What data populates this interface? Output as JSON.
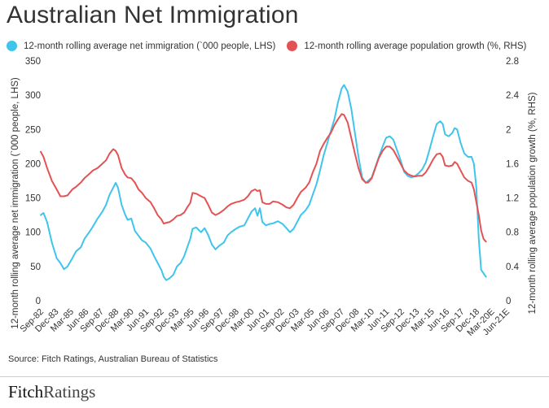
{
  "title": "Australian Net Immigration",
  "source": "Source: Fitch Ratings, Australian Bureau of Statistics",
  "brand": {
    "part1": "Fitch",
    "part2": "Ratings"
  },
  "colors": {
    "immigration": "#3fc5ec",
    "population": "#e45353",
    "axis_text": "#333333"
  },
  "chart_data": {
    "type": "line",
    "title": "Australian Net Immigration",
    "ylabel_left": "12-month rolling average net immigration (`000 people, LHS)",
    "ylabel_right": "12-month rolling average population growth (%, RHS)",
    "ylim_left": [
      0,
      350
    ],
    "ylim_right": [
      0,
      2.8
    ],
    "yticks_left": [
      "0",
      "50",
      "100",
      "150",
      "200",
      "250",
      "300",
      "350"
    ],
    "yticks_right": [
      "0",
      "0.4",
      "0.8",
      "1.2",
      "1.6",
      "2",
      "2.4",
      "2.8"
    ],
    "xlim": [
      1982.67,
      2021.42
    ],
    "xtick_labels": [
      "Sep-82",
      "Dec-83",
      "Mar-85",
      "Jun-86",
      "Sep-87",
      "Dec-88",
      "Mar-90",
      "Jun-91",
      "Sep-92",
      "Dec-93",
      "Mar-95",
      "Jun-96",
      "Sep-97",
      "Dec-98",
      "Mar-00",
      "Jun-01",
      "Sep-02",
      "Dec-03",
      "Mar-05",
      "Jun-06",
      "Sep-07",
      "Dec-08",
      "Mar-10",
      "Jun-11",
      "Sep-12",
      "Dec-13",
      "Mar-15",
      "Jun-16",
      "Sep-17",
      "Dec-18",
      "Mar-20E",
      "Jun-21E"
    ],
    "grid": false,
    "legend_position": "top",
    "series": [
      {
        "name": "12-month rolling average net immigration (`000 people, LHS)",
        "axis": "left",
        "points": [
          [
            1982.67,
            125
          ],
          [
            1982.9,
            128
          ],
          [
            1983.2,
            115
          ],
          [
            1983.6,
            85
          ],
          [
            1984.0,
            62
          ],
          [
            1984.3,
            55
          ],
          [
            1984.6,
            46
          ],
          [
            1984.9,
            50
          ],
          [
            1985.3,
            62
          ],
          [
            1985.6,
            72
          ],
          [
            1986.0,
            78
          ],
          [
            1986.3,
            90
          ],
          [
            1986.7,
            100
          ],
          [
            1987.0,
            108
          ],
          [
            1987.4,
            120
          ],
          [
            1987.8,
            130
          ],
          [
            1988.1,
            140
          ],
          [
            1988.4,
            155
          ],
          [
            1988.7,
            165
          ],
          [
            1988.9,
            172
          ],
          [
            1989.1,
            165
          ],
          [
            1989.4,
            140
          ],
          [
            1989.7,
            125
          ],
          [
            1989.9,
            118
          ],
          [
            1990.2,
            120
          ],
          [
            1990.5,
            102
          ],
          [
            1990.8,
            95
          ],
          [
            1991.1,
            88
          ],
          [
            1991.4,
            85
          ],
          [
            1991.8,
            76
          ],
          [
            1992.1,
            65
          ],
          [
            1992.4,
            55
          ],
          [
            1992.7,
            45
          ],
          [
            1992.9,
            35
          ],
          [
            1993.1,
            30
          ],
          [
            1993.4,
            33
          ],
          [
            1993.7,
            38
          ],
          [
            1994.0,
            50
          ],
          [
            1994.3,
            55
          ],
          [
            1994.6,
            65
          ],
          [
            1994.9,
            80
          ],
          [
            1995.1,
            90
          ],
          [
            1995.3,
            105
          ],
          [
            1995.6,
            107
          ],
          [
            1996.0,
            100
          ],
          [
            1996.3,
            106
          ],
          [
            1996.6,
            96
          ],
          [
            1996.9,
            82
          ],
          [
            1997.2,
            75
          ],
          [
            1997.5,
            80
          ],
          [
            1997.9,
            85
          ],
          [
            1998.2,
            95
          ],
          [
            1998.5,
            100
          ],
          [
            1998.9,
            105
          ],
          [
            1999.2,
            108
          ],
          [
            1999.6,
            110
          ],
          [
            1999.9,
            120
          ],
          [
            2000.2,
            130
          ],
          [
            2000.5,
            135
          ],
          [
            2000.7,
            124
          ],
          [
            2000.9,
            135
          ],
          [
            2001.1,
            115
          ],
          [
            2001.4,
            110
          ],
          [
            2001.7,
            112
          ],
          [
            2002.0,
            113
          ],
          [
            2002.4,
            116
          ],
          [
            2002.8,
            112
          ],
          [
            2003.1,
            106
          ],
          [
            2003.4,
            100
          ],
          [
            2003.7,
            105
          ],
          [
            2004.0,
            115
          ],
          [
            2004.3,
            125
          ],
          [
            2004.7,
            132
          ],
          [
            2005.0,
            140
          ],
          [
            2005.3,
            155
          ],
          [
            2005.6,
            170
          ],
          [
            2005.9,
            190
          ],
          [
            2006.2,
            212
          ],
          [
            2006.5,
            230
          ],
          [
            2006.8,
            248
          ],
          [
            2007.1,
            265
          ],
          [
            2007.4,
            290
          ],
          [
            2007.7,
            310
          ],
          [
            2007.9,
            315
          ],
          [
            2008.2,
            305
          ],
          [
            2008.5,
            280
          ],
          [
            2008.8,
            245
          ],
          [
            2009.1,
            210
          ],
          [
            2009.4,
            180
          ],
          [
            2009.7,
            172
          ],
          [
            2009.9,
            175
          ],
          [
            2010.2,
            180
          ],
          [
            2010.5,
            195
          ],
          [
            2010.8,
            210
          ],
          [
            2011.1,
            225
          ],
          [
            2011.4,
            238
          ],
          [
            2011.7,
            240
          ],
          [
            2012.0,
            235
          ],
          [
            2012.3,
            220
          ],
          [
            2012.6,
            205
          ],
          [
            2012.9,
            188
          ],
          [
            2013.2,
            182
          ],
          [
            2013.5,
            180
          ],
          [
            2013.8,
            182
          ],
          [
            2014.1,
            186
          ],
          [
            2014.4,
            192
          ],
          [
            2014.7,
            202
          ],
          [
            2015.0,
            220
          ],
          [
            2015.3,
            240
          ],
          [
            2015.6,
            258
          ],
          [
            2015.9,
            262
          ],
          [
            2016.1,
            258
          ],
          [
            2016.3,
            243
          ],
          [
            2016.6,
            240
          ],
          [
            2016.9,
            245
          ],
          [
            2017.1,
            252
          ],
          [
            2017.3,
            250
          ],
          [
            2017.6,
            230
          ],
          [
            2017.9,
            215
          ],
          [
            2018.2,
            210
          ],
          [
            2018.5,
            210
          ],
          [
            2018.7,
            200
          ],
          [
            2018.9,
            165
          ],
          [
            2019.1,
            90
          ],
          [
            2019.3,
            45
          ],
          [
            2019.5,
            40
          ],
          [
            2019.7,
            35
          ]
        ]
      },
      {
        "name": "12-month rolling average population growth (%, RHS)",
        "axis": "right",
        "points": [
          [
            1982.67,
            1.74
          ],
          [
            1982.9,
            1.68
          ],
          [
            1983.2,
            1.55
          ],
          [
            1983.6,
            1.4
          ],
          [
            1984.0,
            1.3
          ],
          [
            1984.3,
            1.22
          ],
          [
            1984.6,
            1.22
          ],
          [
            1984.9,
            1.23
          ],
          [
            1985.3,
            1.3
          ],
          [
            1985.6,
            1.33
          ],
          [
            1986.0,
            1.38
          ],
          [
            1986.3,
            1.43
          ],
          [
            1986.7,
            1.48
          ],
          [
            1987.0,
            1.52
          ],
          [
            1987.4,
            1.55
          ],
          [
            1987.8,
            1.6
          ],
          [
            1988.1,
            1.64
          ],
          [
            1988.4,
            1.72
          ],
          [
            1988.7,
            1.77
          ],
          [
            1988.9,
            1.75
          ],
          [
            1989.1,
            1.7
          ],
          [
            1989.4,
            1.55
          ],
          [
            1989.7,
            1.47
          ],
          [
            1989.9,
            1.44
          ],
          [
            1990.2,
            1.43
          ],
          [
            1990.5,
            1.38
          ],
          [
            1990.8,
            1.3
          ],
          [
            1991.1,
            1.26
          ],
          [
            1991.4,
            1.2
          ],
          [
            1991.8,
            1.15
          ],
          [
            1992.1,
            1.08
          ],
          [
            1992.4,
            1.0
          ],
          [
            1992.7,
            0.95
          ],
          [
            1992.9,
            0.9
          ],
          [
            1993.1,
            0.91
          ],
          [
            1993.4,
            0.92
          ],
          [
            1993.7,
            0.95
          ],
          [
            1994.0,
            0.99
          ],
          [
            1994.3,
            1.0
          ],
          [
            1994.6,
            1.03
          ],
          [
            1994.9,
            1.1
          ],
          [
            1995.1,
            1.14
          ],
          [
            1995.3,
            1.26
          ],
          [
            1995.6,
            1.25
          ],
          [
            1996.0,
            1.22
          ],
          [
            1996.3,
            1.2
          ],
          [
            1996.6,
            1.12
          ],
          [
            1996.9,
            1.03
          ],
          [
            1997.2,
            1.0
          ],
          [
            1997.5,
            1.02
          ],
          [
            1997.9,
            1.06
          ],
          [
            1998.2,
            1.1
          ],
          [
            1998.5,
            1.13
          ],
          [
            1998.9,
            1.15
          ],
          [
            1999.2,
            1.16
          ],
          [
            1999.6,
            1.18
          ],
          [
            1999.9,
            1.22
          ],
          [
            2000.2,
            1.28
          ],
          [
            2000.5,
            1.3
          ],
          [
            2000.7,
            1.28
          ],
          [
            2000.9,
            1.29
          ],
          [
            2001.1,
            1.15
          ],
          [
            2001.4,
            1.13
          ],
          [
            2001.7,
            1.13
          ],
          [
            2002.0,
            1.16
          ],
          [
            2002.4,
            1.15
          ],
          [
            2002.8,
            1.12
          ],
          [
            2003.1,
            1.09
          ],
          [
            2003.4,
            1.08
          ],
          [
            2003.7,
            1.12
          ],
          [
            2004.0,
            1.2
          ],
          [
            2004.3,
            1.27
          ],
          [
            2004.7,
            1.32
          ],
          [
            2005.0,
            1.38
          ],
          [
            2005.3,
            1.5
          ],
          [
            2005.6,
            1.6
          ],
          [
            2005.9,
            1.75
          ],
          [
            2006.2,
            1.83
          ],
          [
            2006.5,
            1.9
          ],
          [
            2006.8,
            1.96
          ],
          [
            2007.1,
            2.05
          ],
          [
            2007.4,
            2.12
          ],
          [
            2007.7,
            2.18
          ],
          [
            2007.9,
            2.17
          ],
          [
            2008.2,
            2.08
          ],
          [
            2008.5,
            1.9
          ],
          [
            2008.8,
            1.72
          ],
          [
            2009.1,
            1.55
          ],
          [
            2009.4,
            1.42
          ],
          [
            2009.7,
            1.38
          ],
          [
            2009.9,
            1.38
          ],
          [
            2010.2,
            1.43
          ],
          [
            2010.5,
            1.55
          ],
          [
            2010.8,
            1.67
          ],
          [
            2011.1,
            1.75
          ],
          [
            2011.4,
            1.8
          ],
          [
            2011.7,
            1.8
          ],
          [
            2012.0,
            1.76
          ],
          [
            2012.3,
            1.68
          ],
          [
            2012.6,
            1.6
          ],
          [
            2012.9,
            1.52
          ],
          [
            2013.2,
            1.48
          ],
          [
            2013.5,
            1.46
          ],
          [
            2013.8,
            1.45
          ],
          [
            2014.1,
            1.46
          ],
          [
            2014.4,
            1.46
          ],
          [
            2014.7,
            1.5
          ],
          [
            2015.0,
            1.57
          ],
          [
            2015.3,
            1.65
          ],
          [
            2015.6,
            1.71
          ],
          [
            2015.9,
            1.72
          ],
          [
            2016.1,
            1.68
          ],
          [
            2016.3,
            1.58
          ],
          [
            2016.6,
            1.57
          ],
          [
            2016.9,
            1.58
          ],
          [
            2017.1,
            1.62
          ],
          [
            2017.3,
            1.6
          ],
          [
            2017.6,
            1.52
          ],
          [
            2017.9,
            1.44
          ],
          [
            2018.2,
            1.4
          ],
          [
            2018.5,
            1.38
          ],
          [
            2018.7,
            1.3
          ],
          [
            2018.9,
            1.15
          ],
          [
            2019.1,
            1.0
          ],
          [
            2019.3,
            0.82
          ],
          [
            2019.5,
            0.72
          ],
          [
            2019.7,
            0.69
          ]
        ]
      }
    ]
  }
}
